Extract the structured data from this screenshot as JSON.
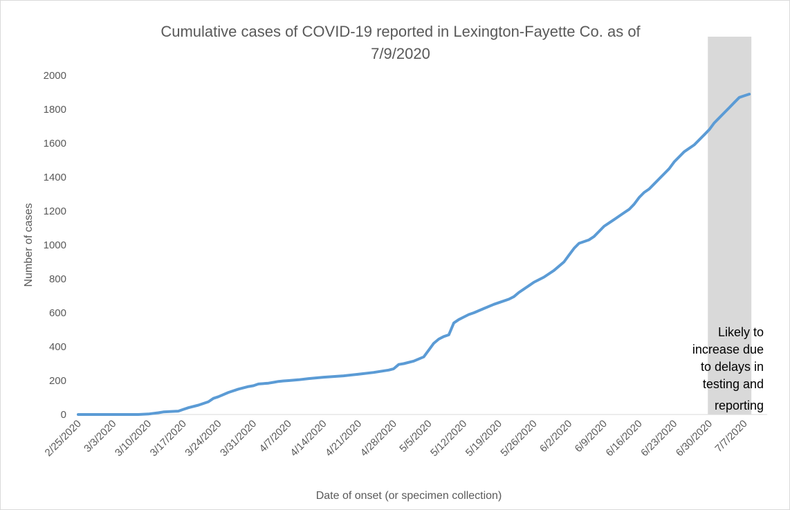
{
  "chart_data": {
    "type": "line",
    "title": [
      "Cumulative cases of COVID-19 reported in Lexington-Fayette Co.  as of",
      "7/9/2020"
    ],
    "xlabel": "Date of onset (or specimen collection)",
    "ylabel": "Number of cases",
    "ylim": [
      0,
      2000
    ],
    "yticks": [
      0,
      200,
      400,
      600,
      800,
      1000,
      1200,
      1400,
      1600,
      1800,
      2000
    ],
    "xticks": [
      "2/25/2020",
      "3/3/2020",
      "3/10/2020",
      "3/17/2020",
      "3/24/2020",
      "3/31/2020",
      "4/7/2020",
      "4/14/2020",
      "4/21/2020",
      "4/28/2020",
      "5/5/2020",
      "5/12/2020",
      "5/19/2020",
      "5/26/2020",
      "6/2/2020",
      "6/9/2020",
      "6/16/2020",
      "6/23/2020",
      "6/30/2020",
      "7/7/2020"
    ],
    "grid": false,
    "line_color": "#5b9bd5",
    "shaded_region": {
      "x_start": "6/30/2020",
      "x_end": "7/8/2020",
      "color": "#d9d9d9"
    },
    "annotation": [
      "Likely to",
      "increase due",
      "to delays in",
      "testing and",
      "reporting"
    ],
    "series": [
      {
        "x": [
          "2/25/2020",
          "3/3/2020",
          "3/8/2020",
          "3/10/2020",
          "3/12/2020",
          "3/13/2020",
          "3/16/2020",
          "3/17/2020",
          "3/18/2020",
          "3/20/2020",
          "3/22/2020",
          "3/23/2020",
          "3/24/2020",
          "3/26/2020",
          "3/28/2020",
          "3/30/2020",
          "3/31/2020",
          "4/1/2020",
          "4/3/2020",
          "4/4/2020",
          "4/5/2020",
          "4/6/2020",
          "4/7/2020",
          "4/9/2020",
          "4/11/2020",
          "4/14/2020",
          "4/18/2020",
          "4/21/2020",
          "4/24/2020",
          "4/27/2020",
          "4/28/2020",
          "4/29/2020",
          "4/30/2020",
          "5/2/2020",
          "5/4/2020",
          "5/5/2020",
          "5/6/2020",
          "5/7/2020",
          "5/8/2020",
          "5/9/2020",
          "5/10/2020",
          "5/11/2020",
          "5/12/2020",
          "5/13/2020",
          "5/14/2020",
          "5/16/2020",
          "5/18/2020",
          "5/19/2020",
          "5/21/2020",
          "5/22/2020",
          "5/23/2020",
          "5/24/2020",
          "5/25/2020",
          "5/26/2020",
          "5/28/2020",
          "5/29/2020",
          "5/30/2020",
          "6/1/2020",
          "6/2/2020",
          "6/3/2020",
          "6/4/2020",
          "6/6/2020",
          "6/7/2020",
          "6/8/2020",
          "6/9/2020",
          "6/10/2020",
          "6/11/2020",
          "6/12/2020",
          "6/13/2020",
          "6/14/2020",
          "6/15/2020",
          "6/16/2020",
          "6/17/2020",
          "6/18/2020",
          "6/19/2020",
          "6/20/2020",
          "6/21/2020",
          "6/22/2020",
          "6/23/2020",
          "6/24/2020",
          "6/25/2020",
          "6/26/2020",
          "6/27/2020",
          "6/28/2020",
          "6/29/2020",
          "6/30/2020",
          "7/1/2020",
          "7/2/2020",
          "7/3/2020",
          "7/4/2020",
          "7/5/2020",
          "7/6/2020",
          "7/7/2020",
          "7/8/2020"
        ],
        "y": [
          0,
          0,
          0,
          3,
          10,
          15,
          20,
          30,
          40,
          55,
          75,
          95,
          105,
          130,
          150,
          165,
          170,
          180,
          185,
          190,
          195,
          198,
          200,
          205,
          212,
          220,
          228,
          238,
          248,
          262,
          270,
          295,
          300,
          315,
          340,
          380,
          420,
          445,
          460,
          470,
          540,
          560,
          575,
          590,
          600,
          625,
          650,
          660,
          680,
          695,
          720,
          740,
          760,
          780,
          810,
          830,
          850,
          900,
          940,
          980,
          1010,
          1030,
          1050,
          1080,
          1110,
          1130,
          1150,
          1170,
          1190,
          1210,
          1240,
          1280,
          1310,
          1330,
          1360,
          1390,
          1420,
          1450,
          1490,
          1520,
          1550,
          1570,
          1590,
          1620,
          1650,
          1680,
          1720,
          1750,
          1780,
          1810,
          1840,
          1870,
          1880,
          1890
        ]
      }
    ]
  }
}
